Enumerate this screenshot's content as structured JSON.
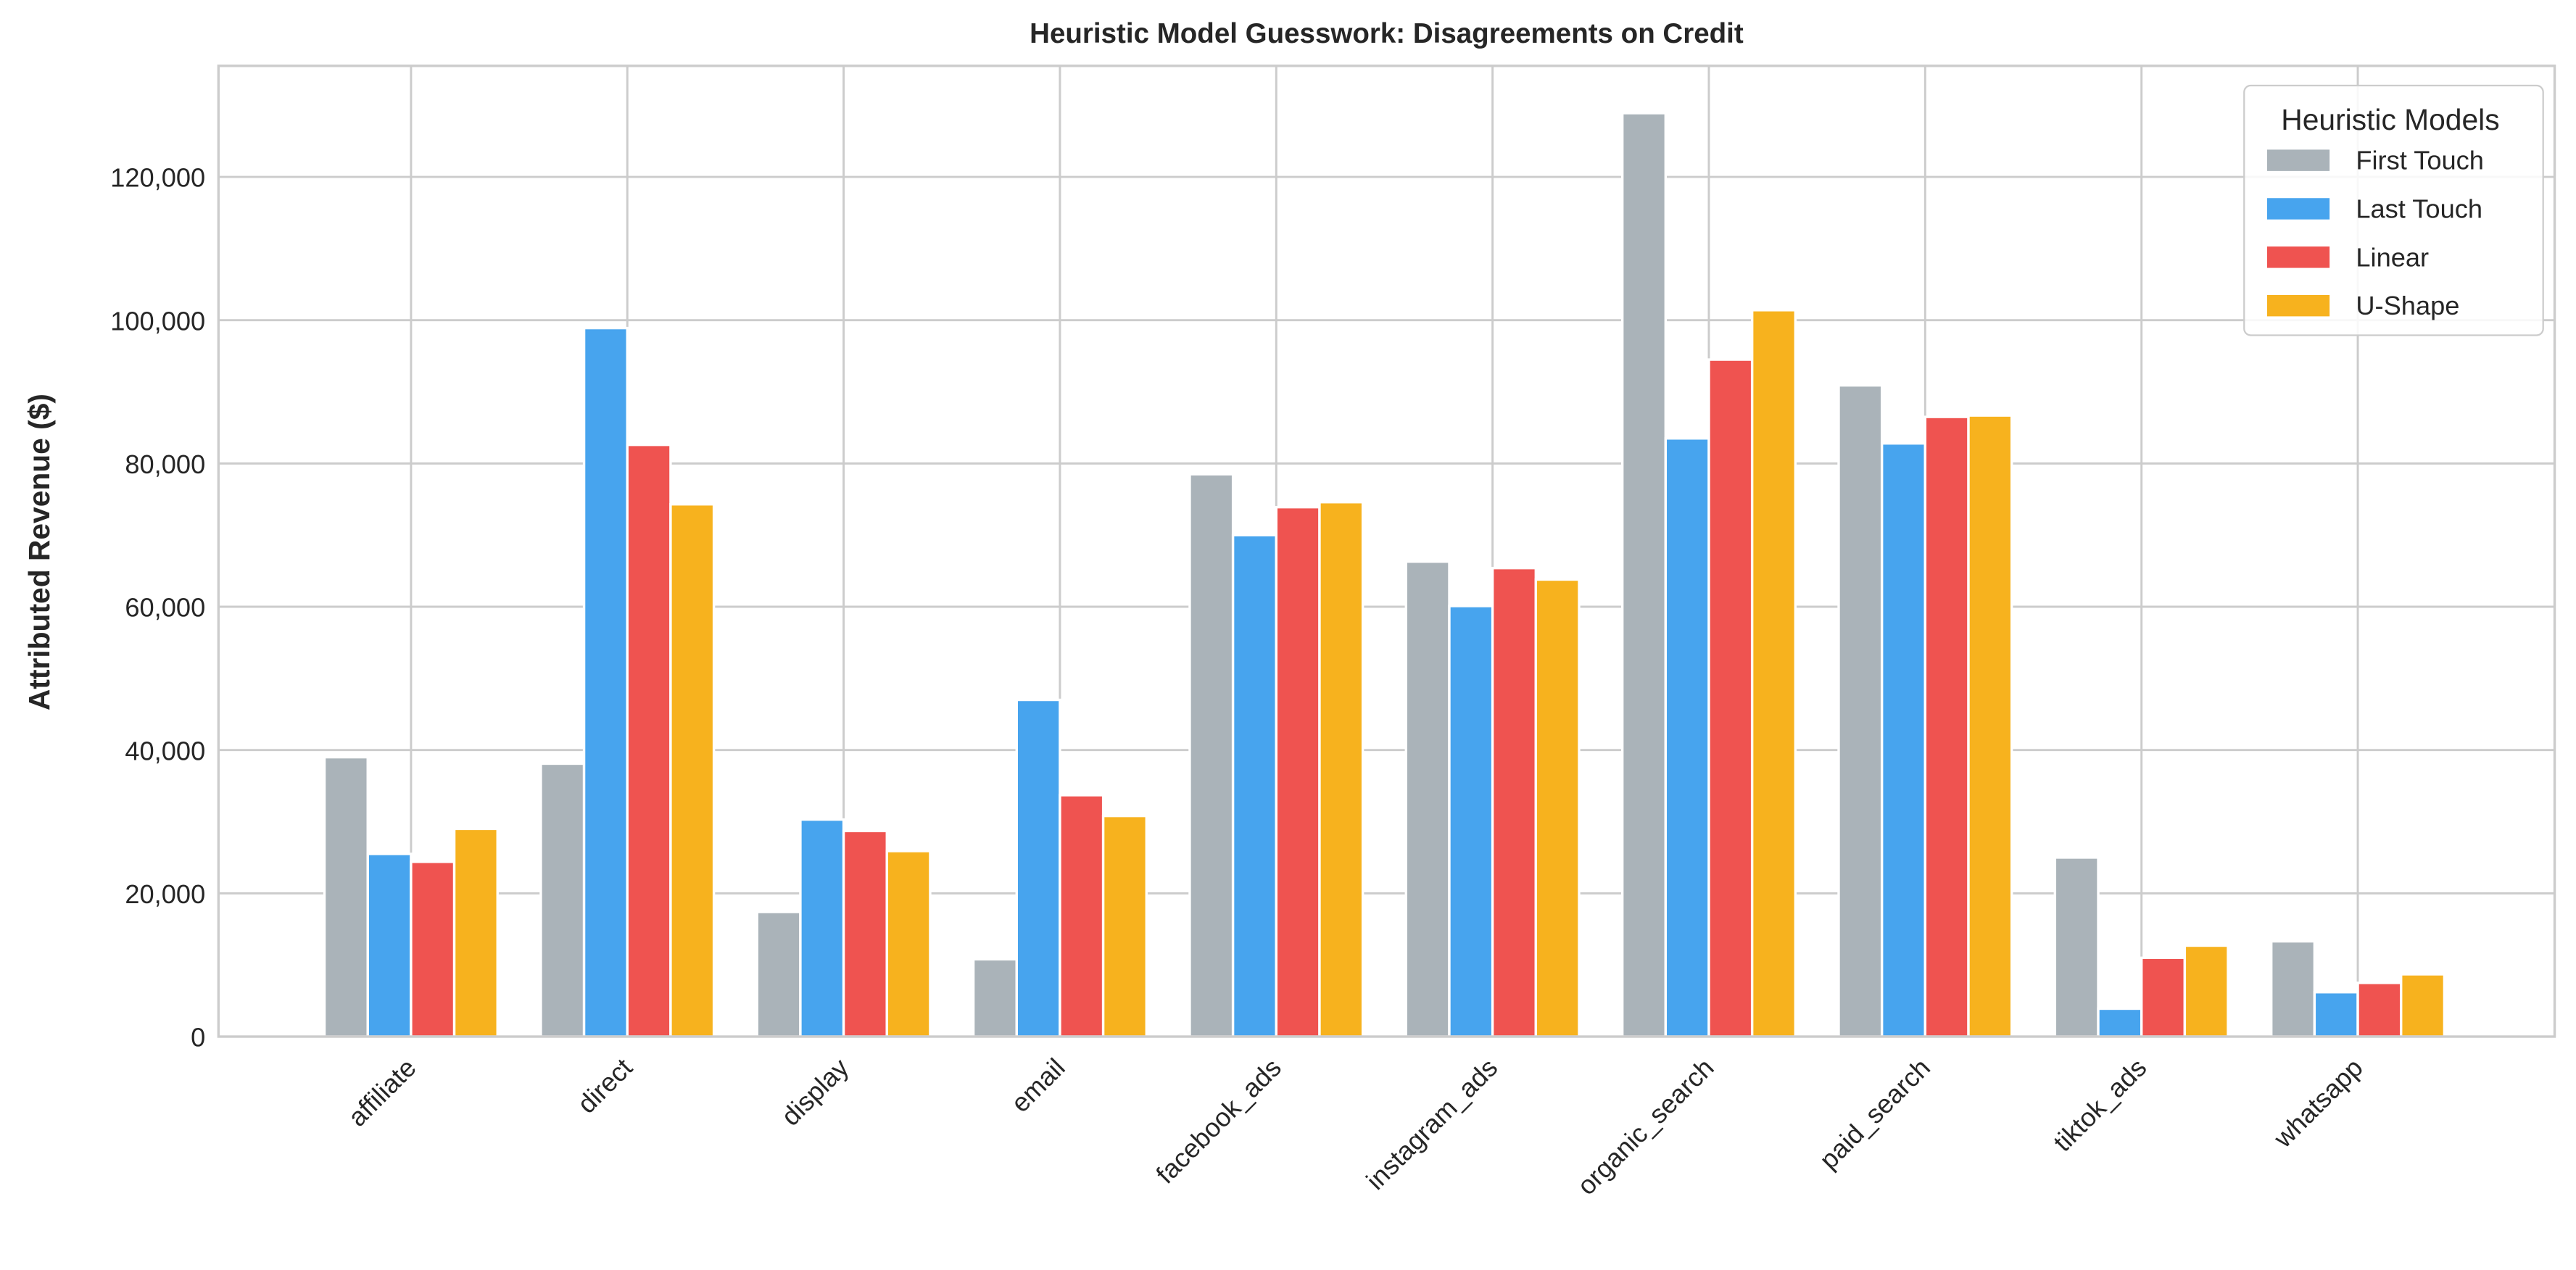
{
  "chart_data": {
    "type": "bar",
    "title": "Heuristic Model Guesswork: Disagreements on Credit",
    "xlabel": "",
    "ylabel": "Attributed Revenue ($)",
    "ylim": [
      0,
      135500
    ],
    "yticks": [
      0,
      20000,
      40000,
      60000,
      80000,
      100000,
      120000
    ],
    "ytick_labels": [
      "0",
      "20,000",
      "40,000",
      "60,000",
      "80,000",
      "100,000",
      "120,000"
    ],
    "grid": true,
    "legend": {
      "title": "Heuristic Models",
      "placement": "top-right"
    },
    "categories": [
      "affiliate",
      "direct",
      "display",
      "email",
      "facebook_ads",
      "instagram_ads",
      "organic_search",
      "paid_search",
      "tiktok_ads",
      "whatsapp"
    ],
    "series": [
      {
        "name": "First Touch",
        "color": "#aab3b9",
        "values": [
          39000,
          38100,
          17400,
          10800,
          78500,
          66300,
          128900,
          90900,
          25000,
          13300
        ]
      },
      {
        "name": "Last Touch",
        "color": "#47a4ee",
        "values": [
          25500,
          98900,
          30300,
          47000,
          70000,
          60100,
          83500,
          82800,
          3900,
          6200
        ]
      },
      {
        "name": "Linear",
        "color": "#ef5350",
        "values": [
          24400,
          82600,
          28700,
          33700,
          73900,
          65400,
          94500,
          86500,
          11000,
          7500
        ]
      },
      {
        "name": "U-Shape",
        "color": "#f7b21e",
        "values": [
          29000,
          74300,
          25900,
          30800,
          74600,
          63800,
          101400,
          86700,
          12700,
          8700
        ]
      }
    ]
  }
}
